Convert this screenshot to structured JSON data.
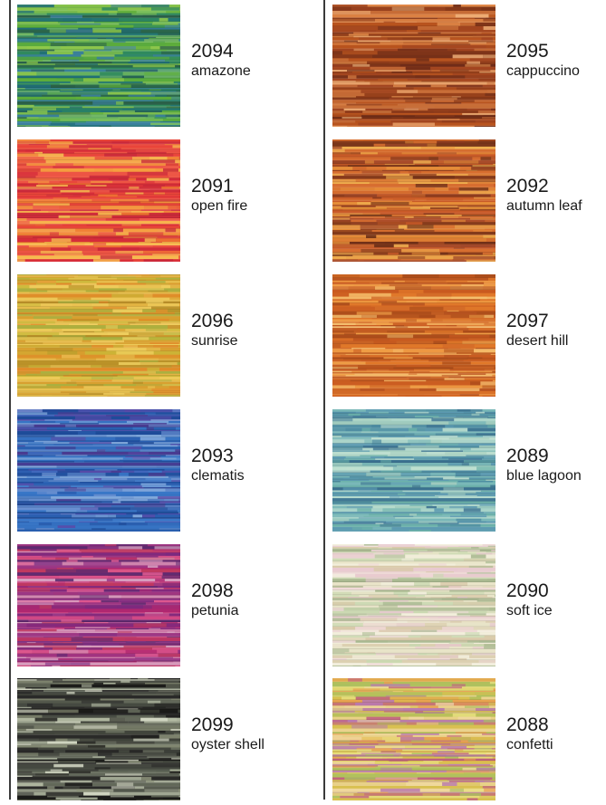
{
  "colors": [
    {
      "code": "2094",
      "name": "amazone",
      "palette": [
        "#2f8a5e",
        "#5fae3a",
        "#1f6e7a",
        "#8fc84a",
        "#3b7fa0",
        "#2a5f48",
        "#7cc060"
      ]
    },
    {
      "code": "2095",
      "name": "cappuccino",
      "palette": [
        "#b8541f",
        "#8a3a1a",
        "#e08a4a",
        "#6e2c18",
        "#c9703a",
        "#f0b078",
        "#a04420"
      ]
    },
    {
      "code": "2091",
      "name": "open fire",
      "palette": [
        "#e8453a",
        "#f07a30",
        "#d42a3a",
        "#f5a040",
        "#ee5a48",
        "#c8283a",
        "#f8c050"
      ]
    },
    {
      "code": "2092",
      "name": "autumn leaf",
      "palette": [
        "#c85a28",
        "#8a3a1e",
        "#e8923a",
        "#a0482a",
        "#f0b050",
        "#6e3018",
        "#d87030"
      ]
    },
    {
      "code": "2096",
      "name": "sunrise",
      "palette": [
        "#d8a030",
        "#c8b838",
        "#e08a28",
        "#a8b040",
        "#e8c050",
        "#b89028",
        "#f0d060"
      ]
    },
    {
      "code": "2097",
      "name": "desert hill",
      "palette": [
        "#e0782a",
        "#c85a20",
        "#f0a048",
        "#a84a1a",
        "#f5c070",
        "#d06828",
        "#b85420"
      ]
    },
    {
      "code": "2093",
      "name": "clematis",
      "palette": [
        "#2a5fb0",
        "#3a78c8",
        "#5a4aa8",
        "#8ab0e0",
        "#1e4a98",
        "#6a90d0",
        "#4a3a90"
      ]
    },
    {
      "code": "2089",
      "name": "blue lagoon",
      "palette": [
        "#7ab8b8",
        "#5a98b0",
        "#a8d0c0",
        "#4a88a0",
        "#c0e0d0",
        "#6ab0a8",
        "#3a7090"
      ]
    },
    {
      "code": "2098",
      "name": "petunia",
      "palette": [
        "#b02870",
        "#7a2a80",
        "#e05a90",
        "#5a2a70",
        "#d8a0c0",
        "#c03a60",
        "#9a3a88"
      ]
    },
    {
      "code": "2090",
      "name": "soft ice",
      "palette": [
        "#e8e4c8",
        "#c8d8b0",
        "#f0d8d8",
        "#a8b890",
        "#f4f0e0",
        "#d8c8a8",
        "#e8c8d0"
      ]
    },
    {
      "code": "2099",
      "name": "oyster shell",
      "palette": [
        "#2a2a28",
        "#6a7060",
        "#b8c0a8",
        "#1a1a18",
        "#8a9078",
        "#d8dcc8",
        "#4a4e44"
      ]
    },
    {
      "code": "2088",
      "name": "confetti",
      "palette": [
        "#d8c050",
        "#b87ab0",
        "#e8a050",
        "#a8c060",
        "#f0d8a0",
        "#c06080",
        "#e8e080"
      ]
    }
  ]
}
